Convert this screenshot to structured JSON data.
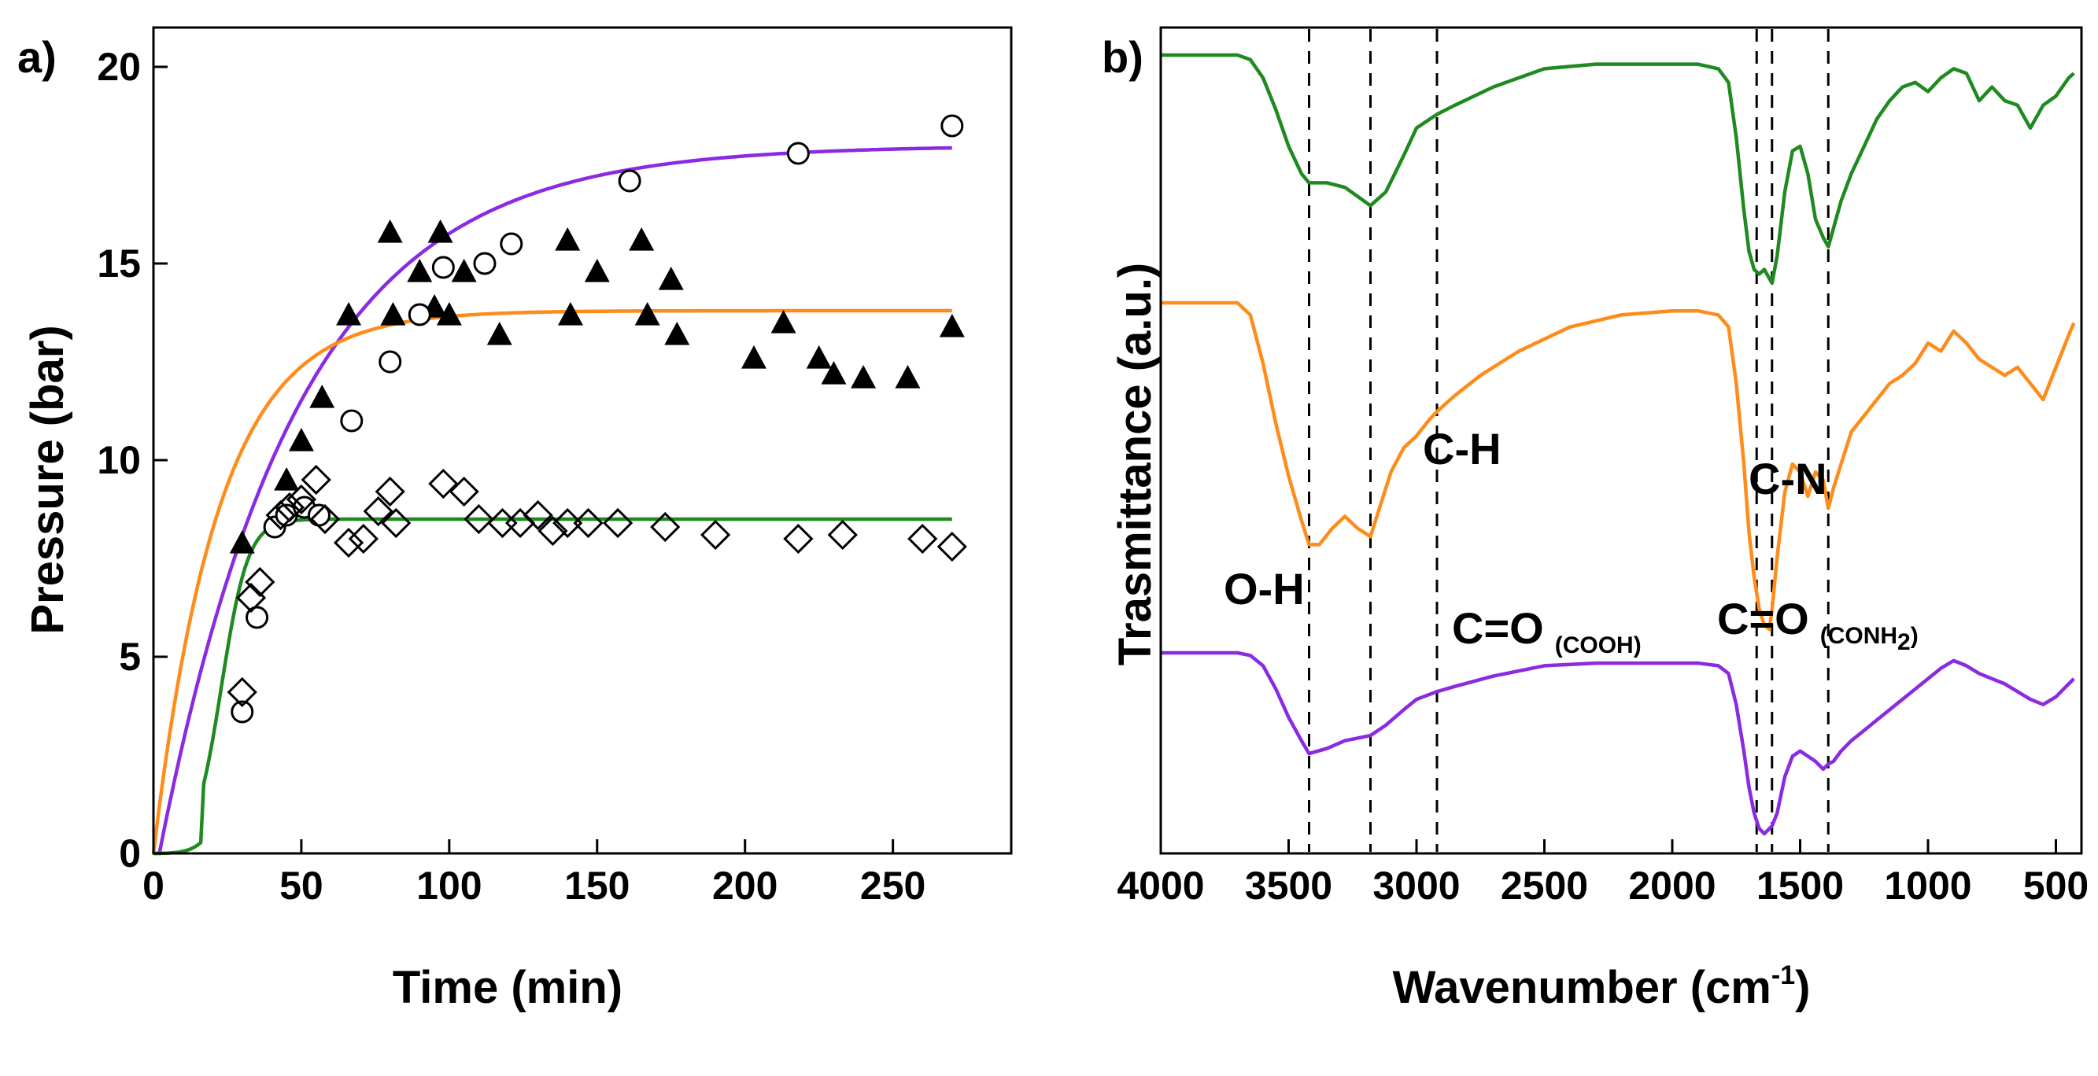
{
  "chart_data": [
    {
      "type": "scatter",
      "panel_label": "a)",
      "xlabel": "Time (min)",
      "ylabel": "Pressure (bar)",
      "xlim": [
        0,
        290
      ],
      "ylim": [
        0,
        21
      ],
      "xticks": [
        "0",
        "50",
        "100",
        "150",
        "200",
        "250"
      ],
      "yticks": [
        "0",
        "5",
        "10",
        "15",
        "20"
      ],
      "legend": "none",
      "series": [
        {
          "name": "triangles (filled)",
          "marker": "filled-triangle",
          "color": "#000000",
          "x": [
            30,
            45,
            50,
            57,
            66,
            80,
            81,
            90,
            95,
            97,
            100,
            105,
            117,
            140,
            141,
            150,
            165,
            167,
            175,
            177,
            203,
            213,
            225,
            230,
            240,
            255,
            270
          ],
          "y": [
            7.9,
            9.5,
            10.5,
            11.6,
            13.7,
            15.8,
            13.7,
            14.8,
            13.9,
            15.8,
            13.7,
            14.8,
            13.2,
            15.6,
            13.7,
            14.8,
            15.6,
            13.7,
            14.6,
            13.2,
            12.6,
            13.5,
            12.6,
            12.2,
            12.1,
            12.1,
            13.4
          ]
        },
        {
          "name": "circles (open)",
          "marker": "open-circle",
          "color": "#000000",
          "x": [
            30,
            35,
            41,
            45,
            51,
            56,
            67,
            80,
            90,
            98,
            112,
            121,
            161,
            218,
            270
          ],
          "y": [
            3.6,
            6.0,
            8.3,
            8.6,
            8.8,
            8.6,
            11.0,
            12.5,
            13.7,
            14.9,
            15.0,
            15.5,
            17.1,
            17.8,
            18.5
          ]
        },
        {
          "name": "diamonds (open)",
          "marker": "open-diamond",
          "color": "#000000",
          "x": [
            30,
            33,
            36,
            43,
            46,
            50,
            55,
            58,
            66,
            71,
            76,
            80,
            82,
            98,
            105,
            110,
            118,
            124,
            130,
            135,
            140,
            147,
            157,
            173,
            190,
            218,
            233,
            260,
            270
          ],
          "y": [
            4.1,
            6.5,
            6.9,
            8.6,
            8.8,
            9.0,
            9.5,
            8.5,
            7.9,
            8.0,
            8.7,
            9.2,
            8.4,
            9.4,
            9.2,
            8.5,
            8.4,
            8.4,
            8.6,
            8.2,
            8.4,
            8.4,
            8.4,
            8.3,
            8.1,
            8.0,
            8.1,
            8.0,
            7.8
          ]
        }
      ],
      "fits": [
        {
          "name": "purple fit",
          "color": "#8a2be2",
          "model": "exponential",
          "params": {
            "plateau": 18.0,
            "lag": 2,
            "tau": 47
          }
        },
        {
          "name": "orange fit",
          "color": "#ff8c1a",
          "model": "exponential",
          "params": {
            "plateau": 13.8,
            "lag": 0,
            "tau": 22
          }
        },
        {
          "name": "green fit",
          "color": "#1f8a1f",
          "model": "sigmoid",
          "params": {
            "plateau": 8.5,
            "lag": 17,
            "tau": 4.5
          }
        }
      ]
    },
    {
      "type": "line",
      "panel_label": "b)",
      "xlabel": "Wavenumber (cm",
      "xlabel_sup": "-1",
      "xlabel_close": ")",
      "ylabel": "Trasmittance (a.u.)",
      "xlim": [
        4000,
        400
      ],
      "xticks": [
        "4000",
        "3500",
        "3000",
        "2500",
        "2000",
        "1500",
        "1000",
        "500"
      ],
      "yticks": "none",
      "reference_lines": [
        3420,
        3180,
        2920,
        1670,
        1610,
        1390
      ],
      "annotations": [
        {
          "text": "O-H",
          "at_wavenumber": 3520
        },
        {
          "text": "C-H",
          "at_wavenumber": 2750
        },
        {
          "text": "C=O",
          "sub": "(COOH)",
          "at_wavenumber": 1900
        },
        {
          "text": "C=O",
          "sub": "(CONH",
          "sub2": "2",
          "sub3": ")",
          "at_wavenumber": 1400
        },
        {
          "text": "C-N",
          "at_wavenumber": 1280
        }
      ],
      "series": [
        {
          "name": "top spectrum",
          "color": "#1f8a1f",
          "x": [
            4000,
            3700,
            3650,
            3600,
            3550,
            3500,
            3450,
            3420,
            3350,
            3280,
            3230,
            3180,
            3120,
            3050,
            3000,
            2920,
            2850,
            2700,
            2500,
            2300,
            2100,
            1900,
            1820,
            1780,
            1750,
            1720,
            1700,
            1680,
            1660,
            1640,
            1620,
            1610,
            1590,
            1560,
            1530,
            1500,
            1470,
            1440,
            1410,
            1390,
            1370,
            1340,
            1300,
            1250,
            1200,
            1150,
            1100,
            1050,
            1000,
            950,
            900,
            850,
            800,
            750,
            700,
            650,
            600,
            550,
            500,
            450,
            430
          ],
          "y": [
            100,
            100,
            99,
            95,
            88,
            80,
            74,
            72,
            72,
            71,
            69,
            67,
            70,
            78,
            84,
            87,
            89,
            93,
            97,
            98,
            98,
            98,
            97,
            94,
            82,
            66,
            57,
            53,
            52,
            53,
            51,
            50,
            56,
            70,
            79,
            80,
            74,
            64,
            60,
            58,
            62,
            68,
            74,
            80,
            86,
            90,
            93,
            94,
            92,
            95,
            97,
            96,
            90,
            93,
            90,
            89,
            84,
            89,
            91,
            95,
            96
          ]
        },
        {
          "name": "middle spectrum",
          "color": "#ff8c1a",
          "x": [
            4000,
            3700,
            3650,
            3600,
            3550,
            3500,
            3450,
            3420,
            3380,
            3330,
            3280,
            3230,
            3180,
            3140,
            3100,
            3050,
            3000,
            2950,
            2920,
            2850,
            2750,
            2600,
            2400,
            2200,
            2000,
            1900,
            1820,
            1780,
            1750,
            1720,
            1700,
            1680,
            1660,
            1640,
            1620,
            1610,
            1590,
            1560,
            1530,
            1500,
            1470,
            1440,
            1410,
            1390,
            1370,
            1340,
            1300,
            1250,
            1200,
            1150,
            1100,
            1050,
            1000,
            950,
            900,
            850,
            800,
            750,
            700,
            650,
            600,
            550,
            500,
            450,
            430
          ],
          "y": [
            100,
            100,
            97,
            85,
            70,
            57,
            46,
            40,
            40,
            44,
            47,
            44,
            42,
            50,
            58,
            64,
            67,
            71,
            73,
            77,
            82,
            88,
            94,
            97,
            98,
            98,
            97,
            94,
            80,
            60,
            43,
            32,
            24,
            20,
            19,
            24,
            37,
            53,
            60,
            58,
            52,
            58,
            56,
            49,
            54,
            60,
            68,
            72,
            76,
            80,
            82,
            85,
            90,
            88,
            93,
            90,
            86,
            84,
            82,
            84,
            80,
            76,
            84,
            92,
            95
          ]
        },
        {
          "name": "bottom spectrum",
          "color": "#8a2be2",
          "x": [
            4000,
            3700,
            3650,
            3600,
            3550,
            3500,
            3450,
            3420,
            3350,
            3280,
            3230,
            3180,
            3120,
            3050,
            3000,
            2920,
            2850,
            2700,
            2500,
            2300,
            2100,
            1900,
            1820,
            1780,
            1750,
            1720,
            1700,
            1680,
            1660,
            1640,
            1620,
            1610,
            1590,
            1560,
            1530,
            1500,
            1470,
            1440,
            1410,
            1390,
            1370,
            1340,
            1300,
            1250,
            1200,
            1150,
            1100,
            1050,
            1000,
            950,
            900,
            850,
            800,
            750,
            700,
            650,
            600,
            550,
            500,
            450,
            430
          ],
          "y": [
            100,
            100,
            99,
            95,
            86,
            75,
            66,
            61,
            63,
            66,
            67,
            68,
            72,
            78,
            82,
            85,
            87,
            91,
            95,
            96,
            96,
            96,
            95,
            92,
            80,
            62,
            48,
            38,
            32,
            30,
            32,
            33,
            38,
            52,
            60,
            62,
            60,
            58,
            55,
            57,
            58,
            62,
            66,
            70,
            74,
            78,
            82,
            86,
            90,
            94,
            97,
            95,
            92,
            90,
            88,
            85,
            82,
            80,
            83,
            88,
            90
          ]
        }
      ]
    }
  ]
}
